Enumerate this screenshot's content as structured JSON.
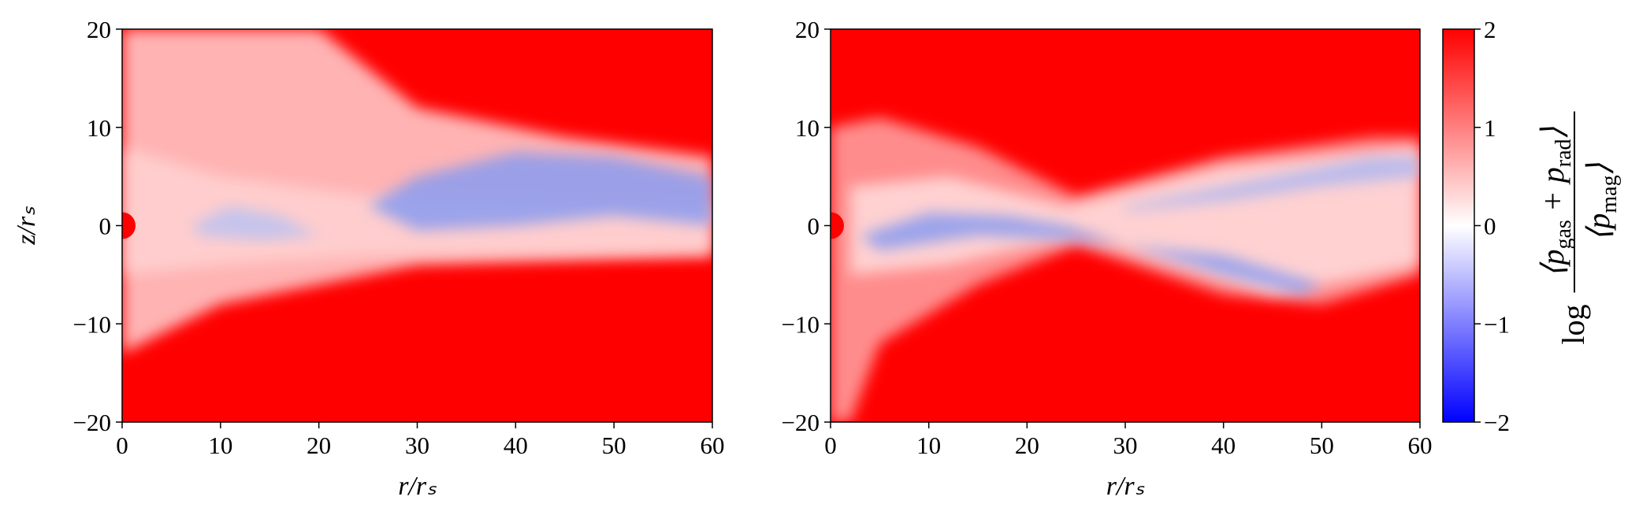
{
  "chart_data": [
    {
      "type": "heatmap",
      "xlabel": "r/rₛ",
      "ylabel": "z/rₛ",
      "xlim": [
        0,
        60
      ],
      "xticks": [
        0,
        10,
        20,
        30,
        40,
        50,
        60
      ],
      "ylim": [
        -20,
        20
      ],
      "yticks": [
        {
          "value": -20,
          "label": "−20"
        },
        {
          "value": -10,
          "label": "−10"
        },
        0,
        10,
        20
      ]
    },
    {
      "type": "heatmap",
      "xlabel": "r/rₛ",
      "xlim": [
        0,
        60
      ],
      "xticks": [
        0,
        10,
        20,
        30,
        40,
        50,
        60
      ],
      "ylim": [
        -20,
        20
      ],
      "yticks": [
        {
          "value": -20,
          "label": "−20"
        },
        {
          "value": -10,
          "label": "−10"
        },
        0,
        10,
        20
      ]
    }
  ],
  "colorbar": {
    "lim": [
      -2,
      2
    ],
    "colors": [
      "#0000ff",
      "#ffffff",
      "#ff0000"
    ],
    "ticks": [
      {
        "value": -2,
        "label": "−2"
      },
      {
        "value": -1,
        "label": "−1"
      },
      0,
      1,
      2
    ],
    "label": {
      "prefix": "log",
      "numerator": [
        "⟨p",
        "gas",
        " + p",
        "rad",
        "⟩"
      ],
      "denominator": [
        "⟨p",
        "mag",
        "⟩"
      ]
    }
  }
}
